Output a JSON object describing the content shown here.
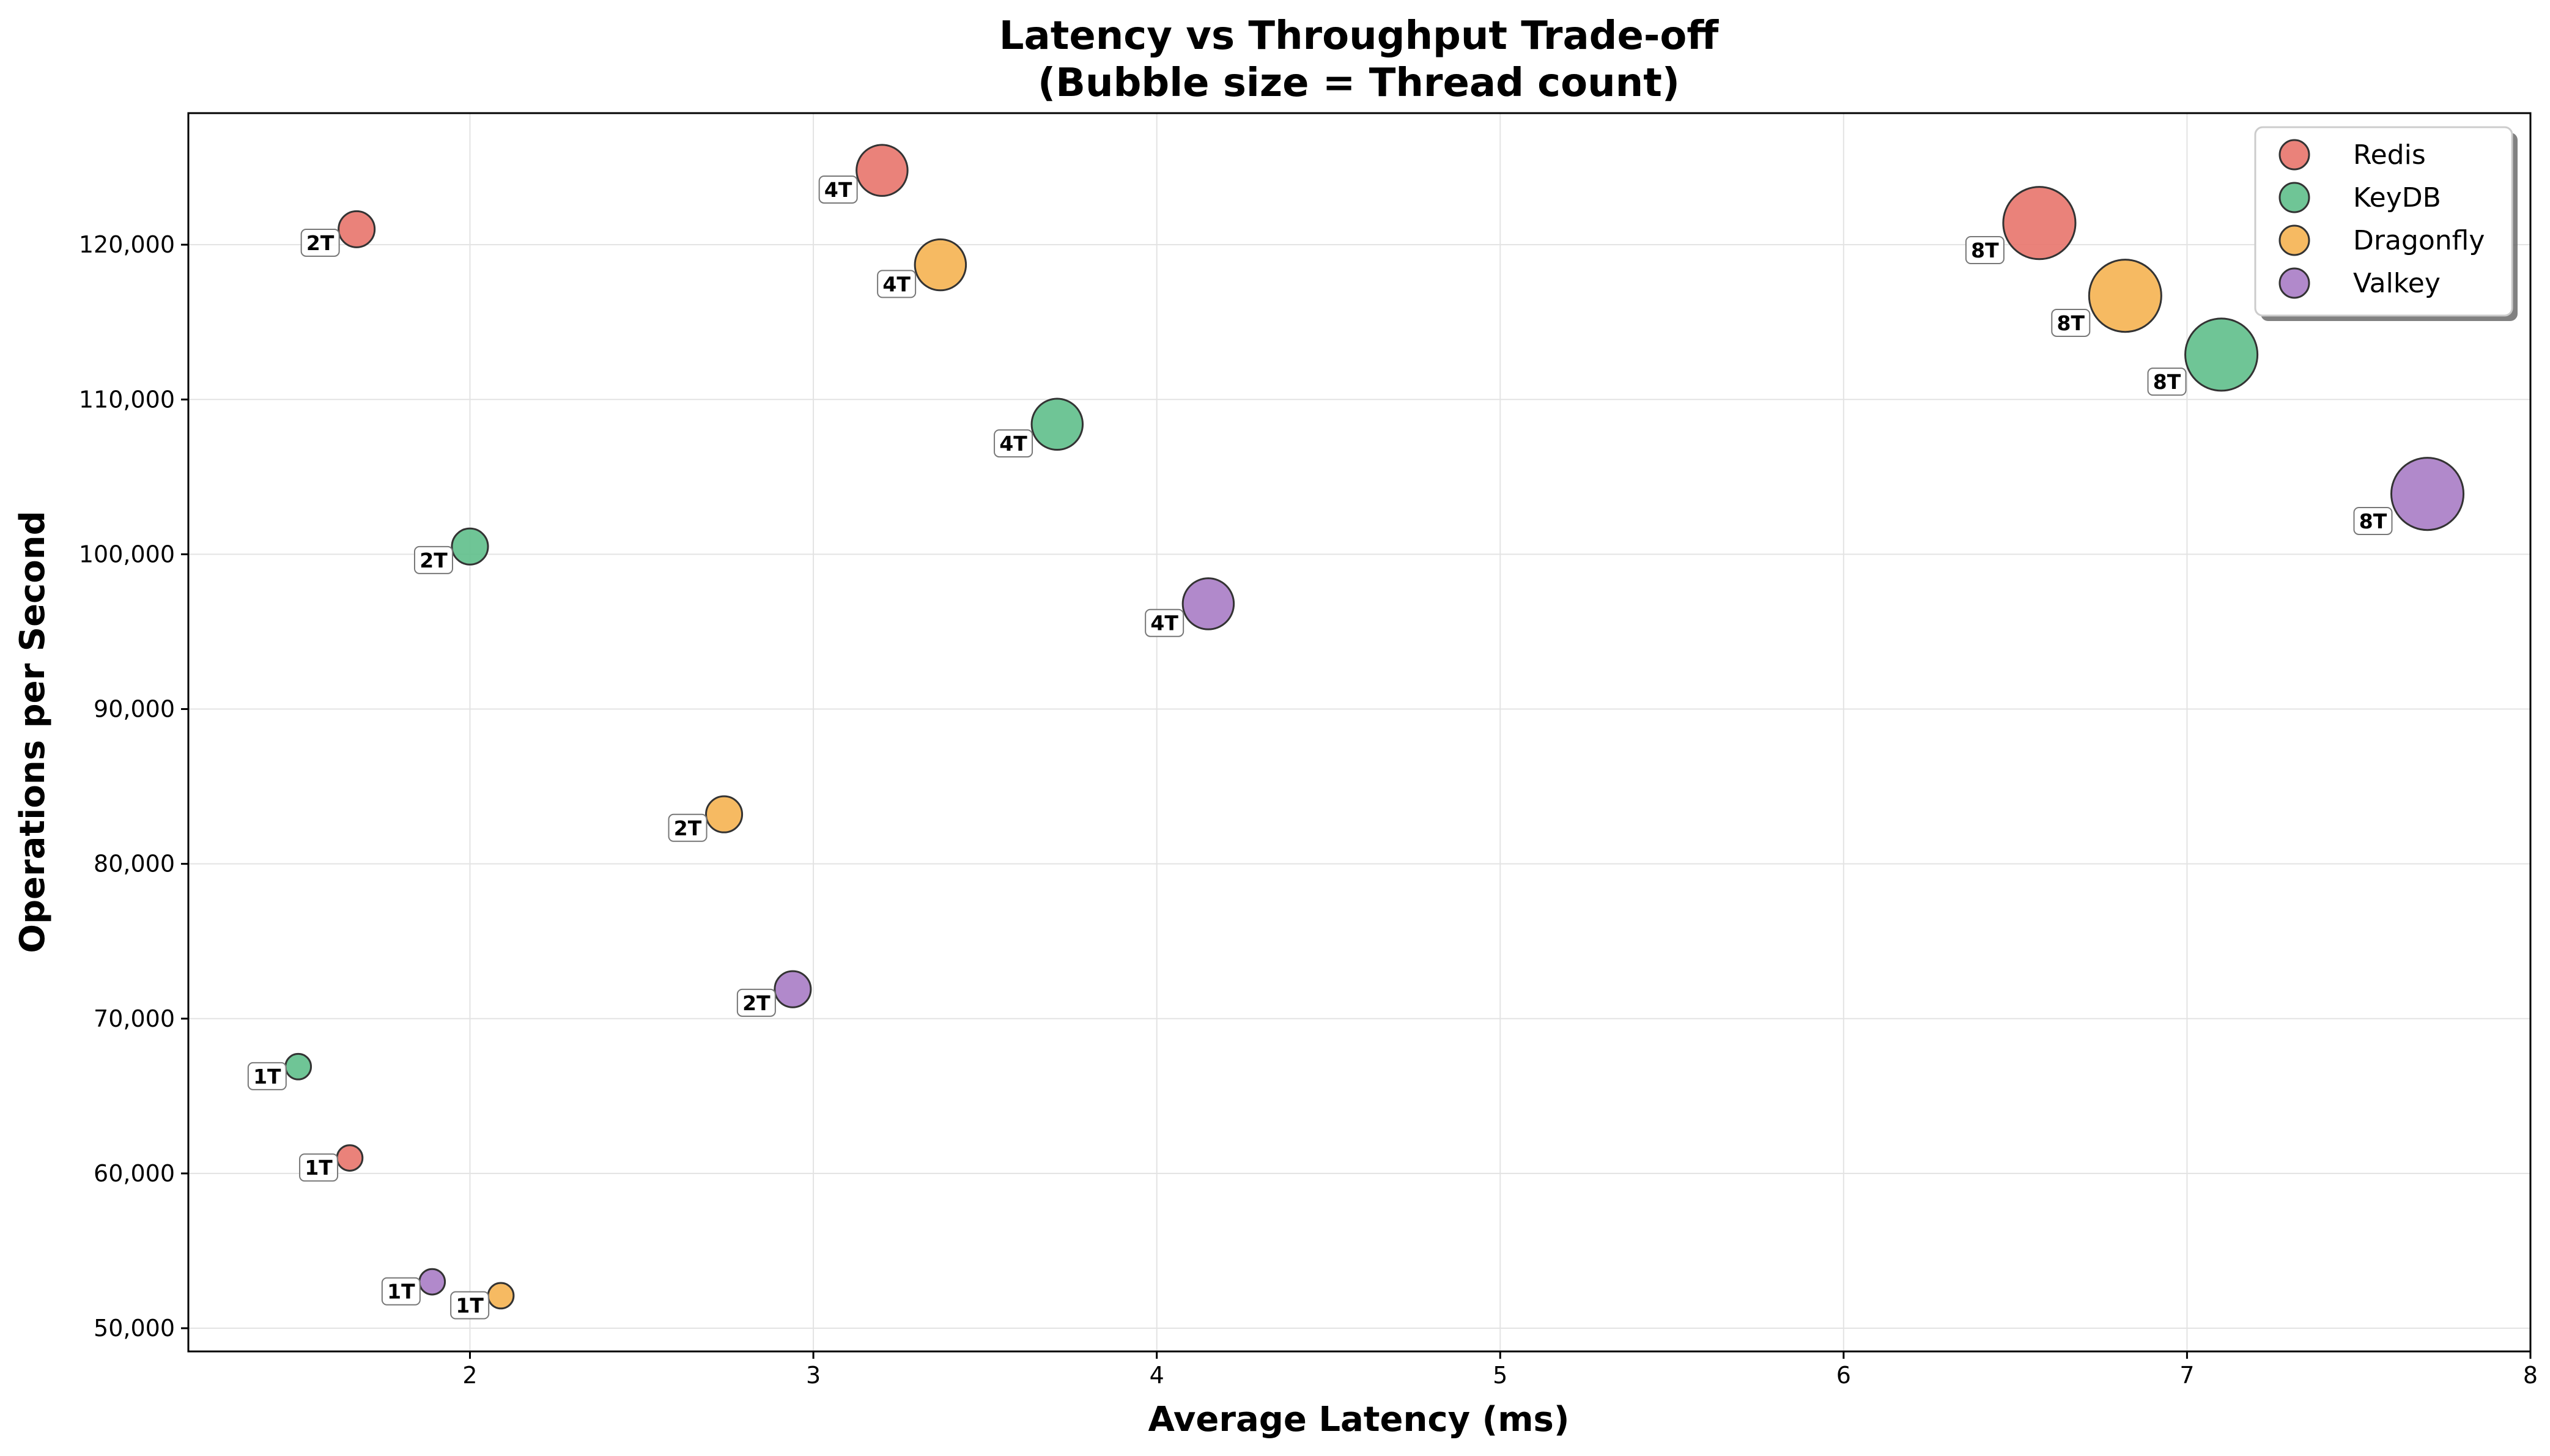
{
  "chart_data": {
    "type": "scatter",
    "title": "Latency vs Throughput Trade-off",
    "subtitle": "(Bubble size = Thread count)",
    "xlabel": "Average Latency (ms)",
    "ylabel": "Operations per Second",
    "xlim": [
      1.18,
      8.0
    ],
    "ylim": [
      48500,
      128500
    ],
    "xticks": [
      2,
      3,
      4,
      5,
      6,
      7,
      8
    ],
    "xtick_labels": [
      "2",
      "3",
      "4",
      "5",
      "6",
      "7",
      "8"
    ],
    "yticks": [
      50000,
      60000,
      70000,
      80000,
      90000,
      100000,
      110000,
      120000
    ],
    "ytick_labels": [
      "50,000",
      "60,000",
      "70,000",
      "80,000",
      "90,000",
      "100,000",
      "110,000",
      "120,000"
    ],
    "grid": true,
    "legend_position": "top-right",
    "series": [
      {
        "name": "Redis",
        "color": "#e8746c",
        "points": [
          {
            "x": 1.65,
            "y": 61000,
            "threads": 1,
            "label": "1T"
          },
          {
            "x": 1.67,
            "y": 121000,
            "threads": 2,
            "label": "2T"
          },
          {
            "x": 3.2,
            "y": 124800,
            "threads": 4,
            "label": "4T"
          },
          {
            "x": 6.57,
            "y": 121400,
            "threads": 8,
            "label": "8T"
          }
        ]
      },
      {
        "name": "KeyDB",
        "color": "#5fbf8b",
        "points": [
          {
            "x": 1.5,
            "y": 66900,
            "threads": 1,
            "label": "1T"
          },
          {
            "x": 2.0,
            "y": 100500,
            "threads": 2,
            "label": "2T"
          },
          {
            "x": 3.71,
            "y": 108400,
            "threads": 4,
            "label": "4T"
          },
          {
            "x": 7.1,
            "y": 112900,
            "threads": 8,
            "label": "8T"
          }
        ]
      },
      {
        "name": "Dragonfly",
        "color": "#f5b251",
        "points": [
          {
            "x": 2.09,
            "y": 52100,
            "threads": 1,
            "label": "1T"
          },
          {
            "x": 2.74,
            "y": 83200,
            "threads": 2,
            "label": "2T"
          },
          {
            "x": 3.37,
            "y": 118700,
            "threads": 4,
            "label": "4T"
          },
          {
            "x": 6.82,
            "y": 116700,
            "threads": 8,
            "label": "8T"
          }
        ]
      },
      {
        "name": "Valkey",
        "color": "#a97cc5",
        "points": [
          {
            "x": 1.89,
            "y": 53000,
            "threads": 1,
            "label": "1T"
          },
          {
            "x": 2.94,
            "y": 71900,
            "threads": 2,
            "label": "2T"
          },
          {
            "x": 4.15,
            "y": 96800,
            "threads": 4,
            "label": "4T"
          },
          {
            "x": 7.7,
            "y": 103900,
            "threads": 8,
            "label": "8T"
          }
        ]
      }
    ]
  }
}
